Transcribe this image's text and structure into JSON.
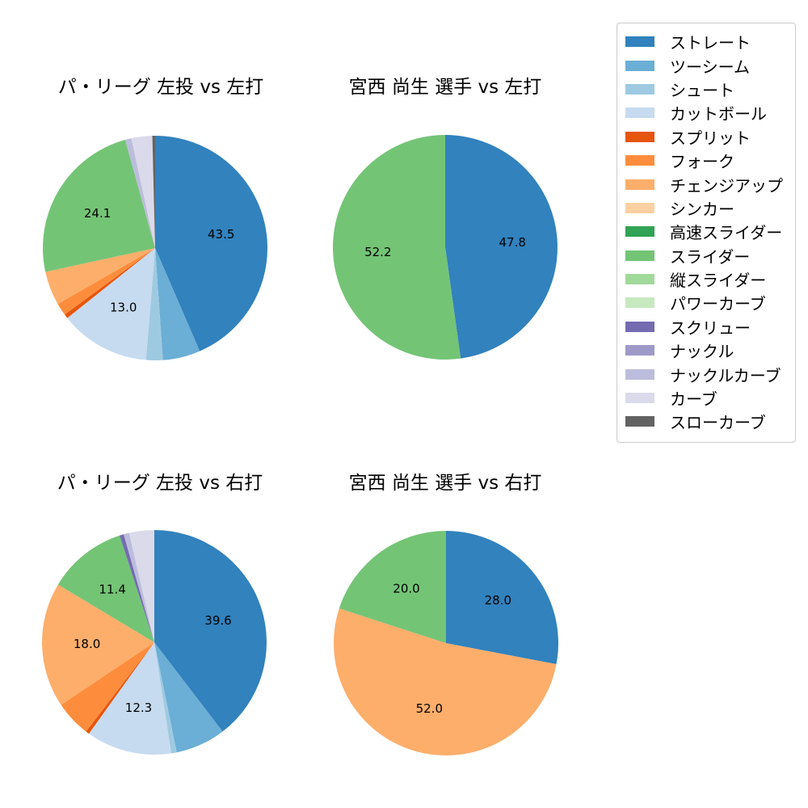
{
  "figure": {
    "background": "#ffffff"
  },
  "legend": {
    "position": "top-right",
    "border_color": "#cccccc",
    "items": [
      {
        "label": "ストレート",
        "color": "#3182bd"
      },
      {
        "label": "ツーシーム",
        "color": "#6baed6"
      },
      {
        "label": "シュート",
        "color": "#9ecae1"
      },
      {
        "label": "カットボール",
        "color": "#c6dbef"
      },
      {
        "label": "スプリット",
        "color": "#e6550d"
      },
      {
        "label": "フォーク",
        "color": "#fd8d3c"
      },
      {
        "label": "チェンジアップ",
        "color": "#fdae6b"
      },
      {
        "label": "シンカー",
        "color": "#fdd0a2"
      },
      {
        "label": "高速スライダー",
        "color": "#31a354"
      },
      {
        "label": "スライダー",
        "color": "#74c476"
      },
      {
        "label": "縦スライダー",
        "color": "#a1d99b"
      },
      {
        "label": "パワーカーブ",
        "color": "#c7e9c0"
      },
      {
        "label": "スクリュー",
        "color": "#756bb1"
      },
      {
        "label": "ナックル",
        "color": "#9e9ac8"
      },
      {
        "label": "ナックルカーブ",
        "color": "#bcbddc"
      },
      {
        "label": "カーブ",
        "color": "#dadaeb"
      },
      {
        "label": "スローカーブ",
        "color": "#636363"
      }
    ]
  },
  "chart_data": [
    {
      "type": "pie",
      "title": "パ・リーグ 左投 vs 左打",
      "start_angle": 90,
      "direction": "clockwise",
      "pct_distance": 0.6,
      "pct_label_min_value": 10,
      "shown_pct_labels": [
        "43.5",
        "13.0",
        "24.1"
      ],
      "slices": [
        {
          "label": "ストレート",
          "value": 43.5,
          "color": "#3182bd"
        },
        {
          "label": "ツーシーム",
          "value": 5.4,
          "color": "#6baed6"
        },
        {
          "label": "シュート",
          "value": 2.4,
          "color": "#9ecae1"
        },
        {
          "label": "カットボール",
          "value": 13.0,
          "color": "#c6dbef"
        },
        {
          "label": "スプリット",
          "value": 0.6,
          "color": "#e6550d"
        },
        {
          "label": "フォーク",
          "value": 1.8,
          "color": "#fd8d3c"
        },
        {
          "label": "チェンジアップ",
          "value": 4.9,
          "color": "#fdae6b"
        },
        {
          "label": "スライダー",
          "value": 24.1,
          "color": "#74c476"
        },
        {
          "label": "ナックルカーブ",
          "value": 0.9,
          "color": "#bcbddc"
        },
        {
          "label": "カーブ",
          "value": 3.0,
          "color": "#dadaeb"
        },
        {
          "label": "スローカーブ",
          "value": 0.4,
          "color": "#636363"
        }
      ]
    },
    {
      "type": "pie",
      "title": "宮西 尚生 選手 vs 左打",
      "start_angle": 90,
      "direction": "clockwise",
      "pct_distance": 0.6,
      "pct_label_min_value": 10,
      "shown_pct_labels": [
        "47.8",
        "52.2"
      ],
      "slices": [
        {
          "label": "ストレート",
          "value": 47.8,
          "color": "#3182bd"
        },
        {
          "label": "スライダー",
          "value": 52.2,
          "color": "#74c476"
        }
      ]
    },
    {
      "type": "pie",
      "title": "パ・リーグ 左投 vs 右打",
      "start_angle": 90,
      "direction": "clockwise",
      "pct_distance": 0.6,
      "pct_label_min_value": 10,
      "shown_pct_labels": [
        "39.6",
        "12.3",
        "18.0",
        "11.4"
      ],
      "slices": [
        {
          "label": "ストレート",
          "value": 39.6,
          "color": "#3182bd"
        },
        {
          "label": "ツーシーム",
          "value": 7.2,
          "color": "#6baed6"
        },
        {
          "label": "シュート",
          "value": 0.8,
          "color": "#9ecae1"
        },
        {
          "label": "カットボール",
          "value": 12.3,
          "color": "#c6dbef"
        },
        {
          "label": "スプリット",
          "value": 0.5,
          "color": "#e6550d"
        },
        {
          "label": "フォーク",
          "value": 5.2,
          "color": "#fd8d3c"
        },
        {
          "label": "チェンジアップ",
          "value": 18.0,
          "color": "#fdae6b"
        },
        {
          "label": "スライダー",
          "value": 11.4,
          "color": "#74c476"
        },
        {
          "label": "スクリュー",
          "value": 0.6,
          "color": "#756bb1"
        },
        {
          "label": "ナックルカーブ",
          "value": 0.8,
          "color": "#bcbddc"
        },
        {
          "label": "カーブ",
          "value": 3.6,
          "color": "#dadaeb"
        }
      ]
    },
    {
      "type": "pie",
      "title": "宮西 尚生 選手 vs 右打",
      "start_angle": 90,
      "direction": "clockwise",
      "pct_distance": 0.6,
      "pct_label_min_value": 10,
      "shown_pct_labels": [
        "28.0",
        "52.0",
        "20.0"
      ],
      "slices": [
        {
          "label": "ストレート",
          "value": 28.0,
          "color": "#3182bd"
        },
        {
          "label": "チェンジアップ",
          "value": 52.0,
          "color": "#fdae6b"
        },
        {
          "label": "スライダー",
          "value": 20.0,
          "color": "#74c476"
        }
      ]
    }
  ]
}
